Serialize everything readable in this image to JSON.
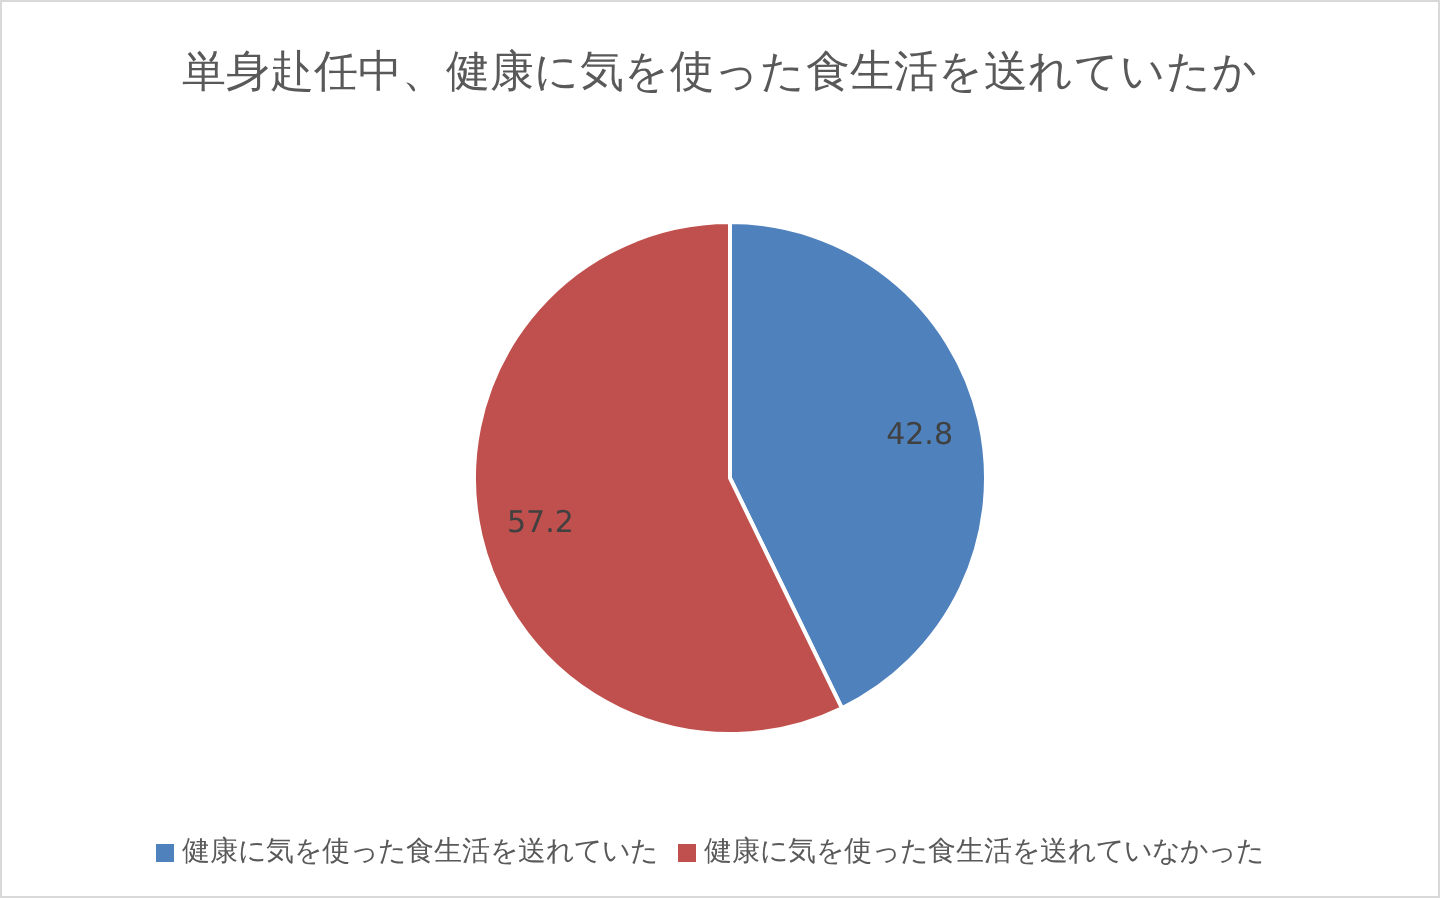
{
  "chart_data": {
    "type": "pie",
    "title": "単身赴任中、健康に気を使った食生活を送れていたか",
    "categories": [
      "健康に気を使った食生活を送れていた",
      "健康に気を使った食生活を送れていなかった"
    ],
    "values": [
      42.8,
      57.2
    ],
    "colors": [
      "#4f81bd",
      "#c0504d"
    ],
    "data_labels": true,
    "legend": "bottom"
  }
}
